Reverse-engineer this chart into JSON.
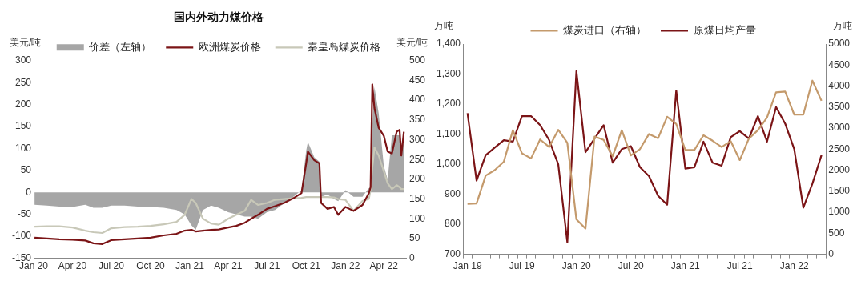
{
  "chart_data": [
    {
      "type": "line",
      "title": "国内外动力煤价格",
      "ylabel": "美元/吨",
      "y2label": "美元/吨",
      "legend": "top",
      "grid": false,
      "x": [
        "2020-01-03",
        "2020-02-01",
        "2020-03-01",
        "2020-04-01",
        "2020-05-01",
        "2020-05-20",
        "2020-06-10",
        "2020-07-01",
        "2020-08-01",
        "2020-09-01",
        "2020-10-01",
        "2020-11-01",
        "2020-12-01",
        "2020-12-20",
        "2021-01-05",
        "2021-01-15",
        "2021-02-01",
        "2021-02-20",
        "2021-03-10",
        "2021-04-01",
        "2021-04-20",
        "2021-05-10",
        "2021-05-25",
        "2021-06-10",
        "2021-07-01",
        "2021-07-20",
        "2021-08-10",
        "2021-09-01",
        "2021-09-20",
        "2021-10-01",
        "2021-10-05",
        "2021-10-20",
        "2021-11-01",
        "2021-11-05",
        "2021-11-20",
        "2021-12-05",
        "2021-12-15",
        "2022-01-01",
        "2022-01-20",
        "2022-02-10",
        "2022-02-25",
        "2022-03-01",
        "2022-03-05",
        "2022-03-10",
        "2022-03-20",
        "2022-04-01",
        "2022-04-10",
        "2022-04-20",
        "2022-05-01",
        "2022-05-08",
        "2022-05-12",
        "2022-05-18"
      ],
      "series": [
        {
          "name": "价差（左轴）",
          "type": "area",
          "color": "#a6a6a6",
          "values": [
            -28,
            -30,
            -32,
            -33,
            -28,
            -35,
            -35,
            -30,
            -30,
            -32,
            -33,
            -35,
            -40,
            -50,
            -75,
            -85,
            -40,
            -30,
            -35,
            -45,
            -50,
            -55,
            -55,
            -60,
            -45,
            -40,
            -25,
            -10,
            5,
            95,
            115,
            80,
            70,
            -10,
            -5,
            -15,
            -20,
            5,
            -10,
            -10,
            10,
            5,
            150,
            240,
            180,
            60,
            30,
            130,
            130,
            130,
            90,
            120
          ]
        },
        {
          "name": "欧洲煤炭价格",
          "type": "line",
          "axis": "y2",
          "color": "#7b1416",
          "values": [
            52,
            50,
            48,
            47,
            45,
            38,
            36,
            46,
            48,
            50,
            52,
            58,
            62,
            70,
            72,
            68,
            70,
            72,
            73,
            78,
            82,
            90,
            100,
            110,
            125,
            132,
            140,
            152,
            165,
            240,
            270,
            248,
            240,
            140,
            125,
            130,
            110,
            130,
            120,
            135,
            165,
            180,
            440,
            380,
            330,
            310,
            270,
            265,
            320,
            325,
            260,
            320
          ]
        },
        {
          "name": "秦皇岛煤炭价格",
          "type": "line",
          "axis": "y2",
          "color": "#c8c8b8",
          "values": [
            80,
            81,
            81,
            78,
            70,
            66,
            64,
            76,
            79,
            80,
            82,
            86,
            92,
            110,
            150,
            140,
            100,
            88,
            85,
            100,
            110,
            120,
            148,
            135,
            140,
            148,
            150,
            152,
            153,
            155,
            155,
            155,
            155,
            155,
            155,
            154,
            150,
            148,
            120,
            145,
            150,
            175,
            230,
            280,
            260,
            220,
            190,
            175,
            185,
            180,
            175,
            175
          ]
        }
      ],
      "xlim": [
        "2020-01-01",
        "2022-05-25"
      ],
      "xticks": [
        {
          "value": "2020-01-01",
          "label": "Jan 20"
        },
        {
          "value": "2020-04-01",
          "label": "Apr 20"
        },
        {
          "value": "2020-07-01",
          "label": "Jul 20"
        },
        {
          "value": "2020-10-01",
          "label": "Oct 20"
        },
        {
          "value": "2021-01-01",
          "label": "Jan 21"
        },
        {
          "value": "2021-04-01",
          "label": "Apr 21"
        },
        {
          "value": "2021-07-01",
          "label": "Jul 21"
        },
        {
          "value": "2021-10-01",
          "label": "Oct 21"
        },
        {
          "value": "2022-01-01",
          "label": "Jan 22"
        },
        {
          "value": "2022-04-01",
          "label": "Apr 22"
        }
      ],
      "ylim": [
        -150,
        300
      ],
      "yticks": [
        -150,
        -100,
        -50,
        0,
        50,
        100,
        150,
        200,
        250,
        300
      ],
      "y2lim": [
        0,
        500
      ],
      "y2ticks": [
        0,
        50,
        100,
        150,
        200,
        250,
        300,
        350,
        400,
        450,
        500
      ]
    },
    {
      "type": "line",
      "ylabel": "万吨",
      "y2label": "万吨",
      "legend": "top",
      "grid": false,
      "categories": [
        "Jan 19",
        null,
        null,
        null,
        null,
        null,
        "Jul 19",
        null,
        null,
        null,
        null,
        null,
        "Jan 20",
        null,
        null,
        null,
        null,
        null,
        "Jul 20",
        null,
        null,
        null,
        null,
        null,
        "Jan 21",
        null,
        null,
        null,
        null,
        null,
        "Jul 21",
        null,
        null,
        null,
        null,
        null,
        "Jan 22",
        null,
        null,
        null
      ],
      "series": [
        {
          "name": "煤炭进口（右轴）",
          "axis": "y2",
          "color": "#c49a6c",
          "values": [
            1200,
            1210,
            1870,
            2000,
            2200,
            2950,
            2400,
            2280,
            2730,
            2550,
            2960,
            2650,
            830,
            610,
            2800,
            2720,
            2330,
            2950,
            2350,
            2500,
            2860,
            2760,
            3270,
            3100,
            2480,
            2480,
            2830,
            2700,
            2550,
            2690,
            2240,
            2750,
            2950,
            3250,
            3850,
            3870,
            3320,
            3320,
            4130,
            3650
          ]
        },
        {
          "name": "原煤日均产量",
          "color": "#7b1416",
          "values": [
            1170,
            945,
            1030,
            1055,
            1080,
            1075,
            1160,
            1160,
            1130,
            1080,
            1000,
            740,
            1310,
            1040,
            1085,
            1130,
            1005,
            1050,
            1060,
            990,
            960,
            895,
            865,
            1245,
            985,
            990,
            1075,
            1005,
            995,
            1090,
            1110,
            1085,
            1160,
            1075,
            1190,
            1135,
            1050,
            855,
            935,
            1030
          ]
        }
      ],
      "ylim": [
        700,
        1400
      ],
      "yticks": [
        {
          "value": 700,
          "label": "700"
        },
        {
          "value": 800,
          "label": "800"
        },
        {
          "value": 900,
          "label": "900"
        },
        {
          "value": 1000,
          "label": "1,000"
        },
        {
          "value": 1100,
          "label": "1,100"
        },
        {
          "value": 1200,
          "label": "1,200"
        },
        {
          "value": 1300,
          "label": "1,300"
        },
        {
          "value": 1400,
          "label": "1,400"
        }
      ],
      "y2lim": [
        0,
        5000
      ],
      "y2ticks": [
        0,
        500,
        1000,
        1500,
        2000,
        2500,
        3000,
        3500,
        4000,
        4500,
        5000
      ]
    }
  ]
}
